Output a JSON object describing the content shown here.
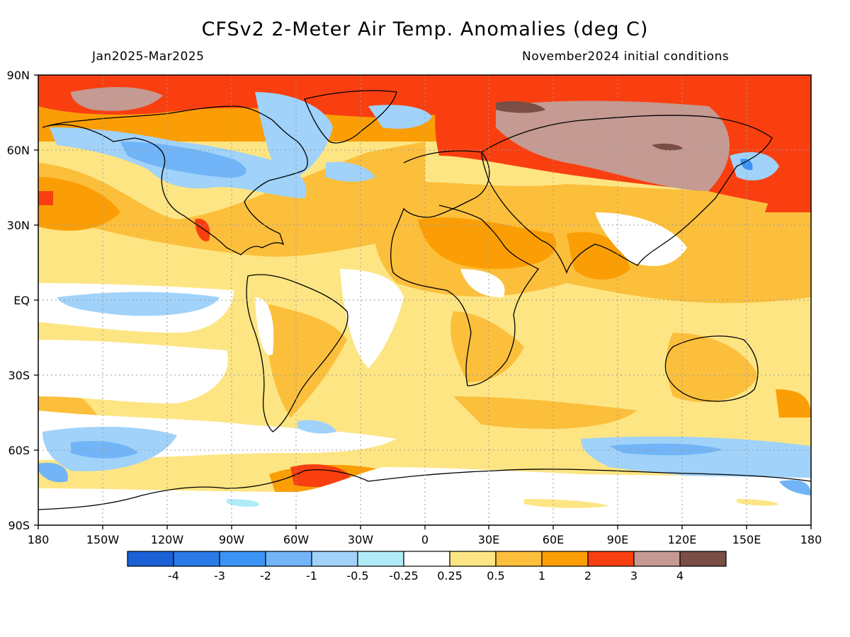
{
  "title": "CFSv2 2-Meter Air Temp. Anomalies (deg C)",
  "period": "Jan2025-Mar2025",
  "initial_conditions": "November2024 initial conditions",
  "lat_labels": [
    "90N",
    "60N",
    "30N",
    "EQ",
    "30S",
    "60S",
    "90S"
  ],
  "lon_labels": [
    "180",
    "150W",
    "120W",
    "90W",
    "60W",
    "30W",
    "0",
    "30E",
    "60E",
    "90E",
    "120E",
    "150E",
    "180"
  ],
  "colorbar": {
    "colors": [
      "#1a61d6",
      "#2a7ae8",
      "#3a94f5",
      "#71b4f7",
      "#a0d2fa",
      "#b0ecf8",
      "#ffffff",
      "#fde583",
      "#fcbf3c",
      "#fb9e06",
      "#f93f10",
      "#c49a92",
      "#7a4d45"
    ],
    "labels": [
      "-4",
      "-3",
      "-2",
      "-1",
      "-0.5",
      "-0.25",
      "0.25",
      "0.5",
      "1",
      "2",
      "3",
      "4"
    ]
  },
  "map_colors": {
    "land_outline": "#000000",
    "grid": "#9a9a9a"
  }
}
